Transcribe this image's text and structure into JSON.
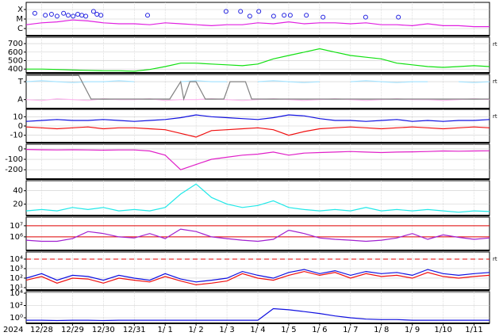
{
  "chart_data": [
    {
      "type": "line",
      "ylim": [
        0.25,
        3.75
      ],
      "yticks": [
        {
          "value": 3,
          "label": "X"
        },
        {
          "value": 2,
          "label": "M"
        },
        {
          "value": 1,
          "label": "C"
        }
      ],
      "x": [
        0,
        0.5,
        1,
        1.5,
        2,
        2.5,
        3,
        3.5,
        4,
        4.5,
        5,
        5.5,
        6,
        6.5,
        7,
        7.5,
        8,
        8.5,
        9,
        9.5,
        10,
        10.5,
        11,
        11.5,
        12,
        12.5,
        13,
        13.5,
        14,
        14.5,
        15
      ],
      "series": [
        {
          "color": "#e020e0",
          "values": [
            1.4,
            1.6,
            1.7,
            1.9,
            1.8,
            1.6,
            1.5,
            1.5,
            1.4,
            1.6,
            1.5,
            1.4,
            1.3,
            1.4,
            1.4,
            1.6,
            1.5,
            1.7,
            1.5,
            1.6,
            1.6,
            1.5,
            1.6,
            1.4,
            1.4,
            1.3,
            1.5,
            1.3,
            1.3,
            1.2,
            1.2
          ]
        },
        {
          "color": "#2020e0",
          "marker": "circle",
          "x": [
            0.28,
            0.62,
            0.82,
            1.0,
            1.21,
            1.36,
            1.52,
            1.67,
            1.8,
            1.93,
            2.18,
            2.29,
            2.42,
            3.93,
            6.47,
            6.94,
            7.24,
            7.53,
            8.01,
            8.35,
            8.55,
            9.07,
            9.61,
            10.99,
            12.05
          ],
          "values": [
            2.6,
            2.4,
            2.5,
            2.3,
            2.6,
            2.4,
            2.3,
            2.5,
            2.4,
            2.3,
            2.8,
            2.5,
            2.4,
            2.4,
            2.8,
            2.8,
            2.3,
            2.8,
            2.3,
            2.4,
            2.4,
            2.4,
            2.2,
            2.2,
            2.2
          ]
        }
      ]
    },
    {
      "type": "line",
      "ylim": [
        355,
        775
      ],
      "yticks": [
        700,
        600,
        500,
        400
      ],
      "side_label": "rt",
      "x": [
        0,
        0.5,
        1,
        1.5,
        2,
        2.5,
        3,
        3.5,
        4,
        4.5,
        5,
        5.5,
        6,
        6.5,
        7,
        7.5,
        8,
        8.5,
        9,
        9.5,
        10,
        10.5,
        11,
        11.5,
        12,
        12.5,
        13,
        13.5,
        14,
        14.5,
        15
      ],
      "series": [
        {
          "color": "#10e010",
          "values": [
            400,
            400,
            395,
            390,
            385,
            380,
            380,
            375,
            395,
            430,
            470,
            470,
            460,
            450,
            440,
            460,
            520,
            560,
            600,
            640,
            600,
            560,
            540,
            520,
            470,
            450,
            430,
            420,
            430,
            440,
            430
          ]
        }
      ]
    },
    {
      "type": "line",
      "ylim": [
        -0.5,
        1.4
      ],
      "yticks": [
        {
          "value": 1,
          "label": "T"
        },
        {
          "value": 0,
          "label": "A"
        }
      ],
      "side_label": "rt",
      "x": [
        0,
        0.5,
        1,
        1.5,
        2,
        2.5,
        3,
        3.5,
        4,
        4.5,
        5,
        5.5,
        6,
        6.5,
        7,
        7.5,
        8,
        8.5,
        9,
        9.5,
        10,
        10.5,
        11,
        11.5,
        12,
        12.5,
        13,
        13.5,
        14,
        14.5,
        15
      ],
      "series": [
        {
          "color": "#a8e4ff",
          "values": [
            1.0,
            1.05,
            1.0,
            0.95,
            1.0,
            1.0,
            1.05,
            1.0,
            null,
            null,
            1.0,
            1.05,
            1.0,
            1.0,
            null,
            1.0,
            1.05,
            1.0,
            0.95,
            1.0,
            null,
            1.0,
            1.05,
            1.0,
            0.95,
            1.0,
            1.0,
            null,
            1.0,
            0.95,
            1.0
          ]
        },
        {
          "color": "#ffb8f0",
          "values": [
            0.0,
            -0.05,
            0.05,
            0.0,
            -0.05,
            0.05,
            0.0,
            0.0,
            0.05,
            -0.05,
            0.0,
            0.0,
            0.05,
            0.0,
            -0.05,
            0.0,
            0.05,
            0.0,
            -0.05,
            0.0,
            0.05,
            0.0,
            -0.05,
            0.0,
            0.05,
            0.0,
            0.0,
            -0.05,
            0.0,
            0.05,
            0.0
          ]
        },
        {
          "color": "#808080",
          "x": [
            0,
            1.7,
            2.1,
            4.65,
            5.0,
            5.1,
            5.3,
            5.5,
            5.8,
            6.4,
            6.6,
            7.1,
            7.3,
            15
          ],
          "values": [
            1.35,
            1.35,
            0.03,
            0.03,
            1.0,
            0.03,
            1.0,
            1.0,
            0.03,
            0.03,
            1.0,
            1.0,
            0.03,
            0.03
          ]
        }
      ]
    },
    {
      "type": "line",
      "ylim": [
        -18,
        18
      ],
      "yticks": [
        10,
        0,
        -10
      ],
      "side_label": "rt",
      "x": [
        0,
        0.5,
        1,
        1.5,
        2,
        2.5,
        3,
        3.5,
        4,
        4.5,
        5,
        5.5,
        6,
        6.5,
        7,
        7.5,
        8,
        8.5,
        9,
        9.5,
        10,
        10.5,
        11,
        11.5,
        12,
        12.5,
        13,
        13.5,
        14,
        14.5,
        15
      ],
      "series": [
        {
          "color": "#1010e0",
          "values": [
            5,
            6,
            7,
            6,
            6,
            7,
            6,
            5,
            6,
            7,
            9,
            12,
            10,
            9,
            8,
            7,
            9,
            12,
            11,
            8,
            6,
            6,
            5,
            6,
            7,
            5,
            6,
            5,
            6,
            6,
            7
          ]
        },
        {
          "color": "#f01010",
          "values": [
            -1,
            -2,
            -3,
            -2,
            -1,
            -3,
            -2,
            -2,
            -3,
            -4,
            -8,
            -12,
            -5,
            -4,
            -3,
            -2,
            -4,
            -10,
            -6,
            -3,
            -2,
            -1,
            -2,
            -3,
            -2,
            -1,
            -2,
            -3,
            -2,
            -1,
            -2
          ]
        }
      ]
    },
    {
      "type": "line",
      "ylim": [
        -290,
        45
      ],
      "yticks": [
        0,
        -100,
        -200
      ],
      "x": [
        0,
        0.5,
        1,
        1.5,
        2,
        2.5,
        3,
        3.5,
        4,
        4.5,
        5,
        5.5,
        6,
        6.5,
        7,
        7.5,
        8,
        8.5,
        9,
        9.5,
        10,
        10.5,
        11,
        11.5,
        12,
        12.5,
        13,
        13.5,
        14,
        14.5,
        15
      ],
      "series": [
        {
          "color": "#e020c8",
          "values": [
            -5,
            -8,
            -10,
            -8,
            -10,
            -12,
            -10,
            -10,
            -20,
            -60,
            -200,
            -150,
            -100,
            -80,
            -60,
            -50,
            -30,
            -60,
            -40,
            -35,
            -30,
            -25,
            -30,
            -35,
            -30,
            -28,
            -25,
            -20,
            -22,
            -20,
            -18
          ]
        }
      ]
    },
    {
      "type": "line",
      "ylim": [
        3,
        55
      ],
      "yticks": [
        40,
        20
      ],
      "x": [
        0,
        0.5,
        1,
        1.5,
        2,
        2.5,
        3,
        3.5,
        4,
        4.5,
        5,
        5.5,
        6,
        6.5,
        7,
        7.5,
        8,
        8.5,
        9,
        9.5,
        10,
        10.5,
        11,
        11.5,
        12,
        12.5,
        13,
        13.5,
        14,
        14.5,
        15
      ],
      "series": [
        {
          "color": "#20e8e8",
          "values": [
            10,
            12,
            10,
            15,
            12,
            15,
            10,
            12,
            10,
            15,
            35,
            50,
            30,
            20,
            15,
            18,
            25,
            15,
            12,
            10,
            12,
            10,
            15,
            10,
            12,
            10,
            12,
            10,
            8,
            10,
            9
          ]
        }
      ]
    },
    {
      "type": "line",
      "log": true,
      "ylim": [
        60000,
        60000000
      ],
      "yticks": [
        {
          "value": 10000000,
          "label": "10⁷"
        },
        {
          "value": 1000000,
          "label": "10⁶"
        }
      ],
      "thresholds": [
        10000000,
        1000000
      ],
      "threshold_color": "#e00000",
      "x": [
        0,
        0.5,
        1,
        1.5,
        2,
        2.5,
        3,
        3.5,
        4,
        4.5,
        5,
        5.5,
        6,
        6.5,
        7,
        7.5,
        8,
        8.5,
        9,
        9.5,
        10,
        10.5,
        11,
        11.5,
        12,
        12.5,
        13,
        13.5,
        14,
        14.5,
        15
      ],
      "series": [
        {
          "color": "#a020d0",
          "values": [
            500000,
            400000,
            400000,
            700000,
            3000000,
            2000000,
            1000000,
            800000,
            2000000,
            700000,
            5000000,
            3000000,
            1000000,
            700000,
            500000,
            400000,
            600000,
            4000000,
            2000000,
            800000,
            600000,
            500000,
            400000,
            500000,
            800000,
            2000000,
            600000,
            1500000,
            900000,
            600000,
            800000
          ]
        }
      ]
    },
    {
      "type": "line",
      "log": true,
      "ylim": [
        5.6,
        56000
      ],
      "yticks": [
        {
          "value": 10000,
          "label": "10⁴"
        },
        {
          "value": 1000,
          "label": "10³"
        },
        {
          "value": 100,
          "label": "10²"
        },
        {
          "value": 10,
          "label": "10¹"
        }
      ],
      "thresholds": [
        10000
      ],
      "threshold_color": "#e00000",
      "threshold_dash": true,
      "side_label": "rt",
      "x": [
        0,
        0.5,
        1,
        1.5,
        2,
        2.5,
        3,
        3.5,
        4,
        4.5,
        5,
        5.5,
        6,
        6.5,
        7,
        7.5,
        8,
        8.5,
        9,
        9.5,
        10,
        10.5,
        11,
        11.5,
        12,
        12.5,
        13,
        13.5,
        14,
        14.5,
        15
      ],
      "series": [
        {
          "color": "#1010e0",
          "values": [
            100,
            300,
            60,
            200,
            150,
            60,
            200,
            100,
            60,
            300,
            80,
            40,
            60,
            100,
            500,
            200,
            100,
            400,
            800,
            300,
            600,
            200,
            500,
            300,
            400,
            200,
            800,
            300,
            200,
            300,
            400
          ]
        },
        {
          "color": "#f01010",
          "values": [
            60,
            150,
            30,
            100,
            80,
            30,
            100,
            60,
            40,
            150,
            50,
            20,
            30,
            50,
            300,
            100,
            60,
            200,
            500,
            200,
            400,
            100,
            300,
            150,
            200,
            100,
            400,
            150,
            100,
            150,
            200
          ]
        }
      ]
    },
    {
      "type": "line",
      "log": true,
      "ylim": [
        0.125,
        18000
      ],
      "yticks": [
        {
          "value": 10000,
          "label": "10⁴"
        },
        {
          "value": 100,
          "label": "10²"
        },
        {
          "value": 1,
          "label": "10⁰"
        }
      ],
      "year_label": "2024",
      "xlim": [
        0,
        15
      ],
      "xticks": [
        {
          "value": 0.5,
          "label": "12/28"
        },
        {
          "value": 1.5,
          "label": "12/29"
        },
        {
          "value": 2.5,
          "label": "12/30"
        },
        {
          "value": 3.5,
          "label": "12/31"
        },
        {
          "value": 4.5,
          "label": "1/ 1"
        },
        {
          "value": 5.5,
          "label": "1/ 2"
        },
        {
          "value": 6.5,
          "label": "1/ 3"
        },
        {
          "value": 7.5,
          "label": "1/ 4"
        },
        {
          "value": 8.5,
          "label": "1/ 5"
        },
        {
          "value": 9.5,
          "label": "1/ 6"
        },
        {
          "value": 10.5,
          "label": "1/ 7"
        },
        {
          "value": 11.5,
          "label": "1/ 8"
        },
        {
          "value": 12.5,
          "label": "1/ 9"
        },
        {
          "value": 13.5,
          "label": "1/10"
        },
        {
          "value": 14.5,
          "label": "1/11"
        }
      ],
      "x": [
        0,
        0.5,
        1,
        1.5,
        2,
        2.5,
        3,
        3.5,
        4,
        4.5,
        5,
        5.5,
        6,
        6.5,
        7,
        7.5,
        8,
        8.5,
        9,
        9.5,
        10,
        10.5,
        11,
        11.5,
        12,
        12.5,
        13,
        13.5,
        14,
        14.5,
        15
      ],
      "series": [
        {
          "color": "#1010e0",
          "values": [
            0.4,
            0.4,
            0.35,
            0.4,
            0.4,
            0.35,
            0.4,
            0.4,
            0.4,
            0.4,
            0.4,
            0.4,
            0.4,
            0.4,
            0.4,
            0.4,
            30,
            20,
            10,
            5,
            2,
            1,
            0.6,
            0.5,
            0.5,
            0.4,
            0.4,
            0.4,
            0.4,
            0.4,
            0.4
          ]
        }
      ]
    }
  ]
}
